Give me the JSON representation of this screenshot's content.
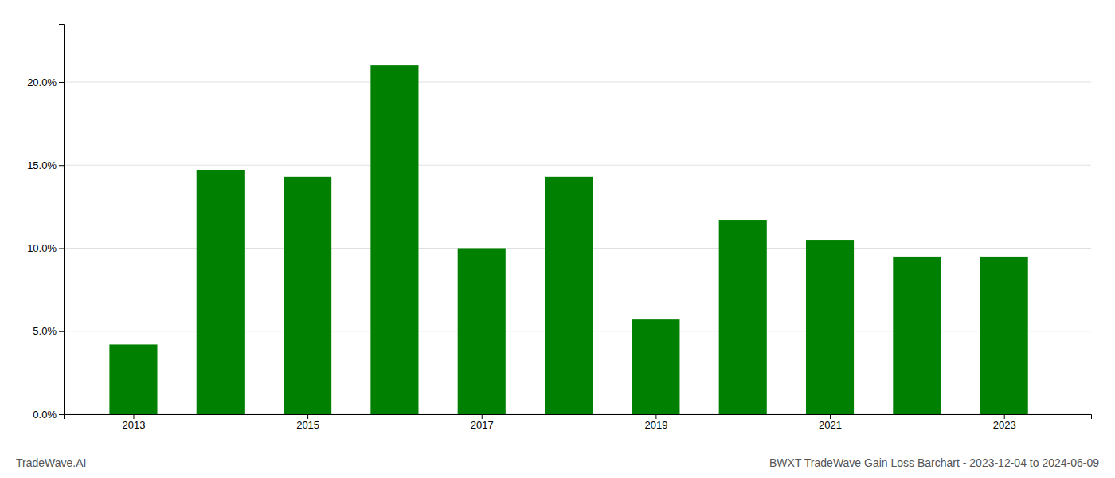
{
  "chart_data": {
    "type": "bar",
    "title": "BWXT TradeWave Gain Loss Barchart - 2023-12-04 to 2024-06-09",
    "annotations": [
      "TradeWave.AI"
    ],
    "x": [
      2013,
      2014,
      2015,
      2016,
      2017,
      2018,
      2019,
      2020,
      2021,
      2022,
      2023
    ],
    "values": [
      0.042,
      0.147,
      0.143,
      0.21,
      0.1,
      0.143,
      0.057,
      0.117,
      0.105,
      0.095,
      0.095
    ],
    "color": "#008000",
    "xlim": [
      2012.2,
      2024.0
    ],
    "xticks": [
      2013,
      2015,
      2017,
      2019,
      2021,
      2023
    ],
    "ylim": [
      0,
      0.235
    ],
    "yticks": [
      {
        "value": 0.0,
        "label": "0.0%"
      },
      {
        "value": 0.05,
        "label": "5.0%"
      },
      {
        "value": 0.1,
        "label": "10.0%"
      },
      {
        "value": 0.15,
        "label": "15.0%"
      },
      {
        "value": 0.2,
        "label": "20.0%"
      }
    ],
    "grid": true
  }
}
